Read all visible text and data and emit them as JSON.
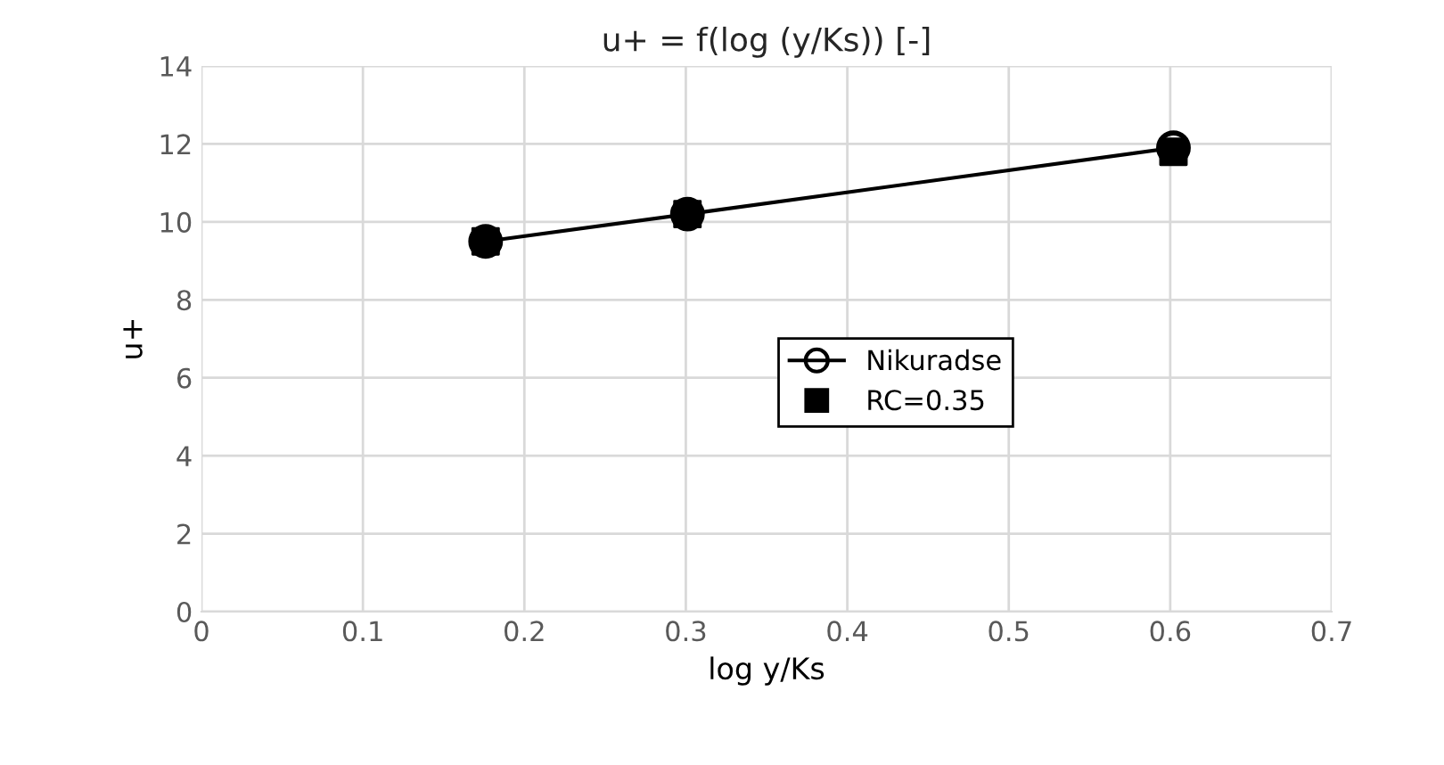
{
  "chart_data": {
    "type": "line",
    "title": "u+ = f(log (y/Ks)) [-]",
    "xlabel": "log y/Ks",
    "ylabel": "u+",
    "series": [
      {
        "name": "Nikuradse",
        "color": "#000000",
        "marker": "circle",
        "x": [
          0.176,
          0.301,
          0.602
        ],
        "values": [
          9.5,
          10.2,
          11.9
        ]
      },
      {
        "name": "RC=0.35",
        "type": "scatter",
        "color": "#000000",
        "marker": "square",
        "x": [
          0.176,
          0.301,
          0.602
        ],
        "values": [
          9.5,
          10.2,
          11.8
        ]
      }
    ],
    "xlim": [
      0,
      0.7
    ],
    "xticks": [
      0,
      0.1,
      0.2,
      0.3,
      0.4,
      0.5,
      0.6,
      0.7
    ],
    "ylim": [
      0,
      14
    ],
    "yticks": [
      0,
      2,
      4,
      6,
      8,
      10,
      12,
      14
    ],
    "grid": true,
    "legend": "right"
  }
}
